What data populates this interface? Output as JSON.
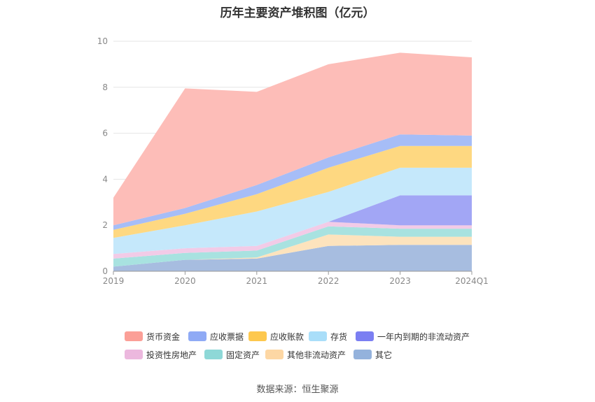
{
  "chart_data": {
    "type": "area",
    "stacked": true,
    "title": "历年主要资产堆积图（亿元）",
    "categories": [
      "2019",
      "2020",
      "2021",
      "2022",
      "2023",
      "2024Q1"
    ],
    "ylim": [
      0,
      10
    ],
    "yticks": [
      0,
      2,
      4,
      6,
      8,
      10
    ],
    "grid": true,
    "legend_position": "bottom",
    "series": [
      {
        "name": "其它",
        "values": [
          0.2,
          0.5,
          0.55,
          1.1,
          1.15,
          1.15
        ],
        "color": "#a7bde0",
        "legend_color": "#94b2dc"
      },
      {
        "name": "其他非流动资产",
        "values": [
          0.0,
          0.0,
          0.05,
          0.5,
          0.35,
          0.35
        ],
        "color": "#fde3bd",
        "legend_color": "#fdd7a4"
      },
      {
        "name": "固定资产",
        "values": [
          0.35,
          0.3,
          0.3,
          0.35,
          0.35,
          0.35
        ],
        "color": "#a8e2e0",
        "legend_color": "#8ed8d7"
      },
      {
        "name": "投资性房地产",
        "values": [
          0.2,
          0.2,
          0.2,
          0.2,
          0.15,
          0.15
        ],
        "color": "#f2cbe7",
        "legend_color": "#ecb8de"
      },
      {
        "name": "一年内到期的非流动资产",
        "values": [
          0.0,
          0.0,
          0.0,
          0.0,
          1.3,
          1.3
        ],
        "color": "#a2a6f5",
        "legend_color": "#7b7ff2"
      },
      {
        "name": "存货",
        "values": [
          0.7,
          1.0,
          1.5,
          1.3,
          1.2,
          1.2
        ],
        "color": "#c5e8fb",
        "legend_color": "#a9def9"
      },
      {
        "name": "应收账款",
        "values": [
          0.35,
          0.5,
          0.75,
          1.05,
          0.95,
          0.95
        ],
        "color": "#fed881",
        "legend_color": "#fdc84e"
      },
      {
        "name": "应收票据",
        "values": [
          0.2,
          0.25,
          0.4,
          0.45,
          0.5,
          0.45
        ],
        "color": "#a6bdf7",
        "legend_color": "#8faaf5"
      },
      {
        "name": "货币资金",
        "values": [
          1.2,
          5.2,
          4.05,
          4.05,
          3.55,
          3.4
        ],
        "color": "#fdbdb8",
        "legend_color": "#fb9f97"
      }
    ]
  },
  "legend": [
    {
      "label": "货币资金",
      "color": "#fb9f97"
    },
    {
      "label": "应收票据",
      "color": "#8faaf5"
    },
    {
      "label": "应收账款",
      "color": "#fdc84e"
    },
    {
      "label": "存货",
      "color": "#a9def9"
    },
    {
      "label": "一年内到期的非流动资产",
      "color": "#7b7ff2"
    },
    {
      "label": "投资性房地产",
      "color": "#ecb8de"
    },
    {
      "label": "固定资产",
      "color": "#8ed8d7"
    },
    {
      "label": "其他非流动资产",
      "color": "#fdd7a4"
    },
    {
      "label": "其它",
      "color": "#94b2dc"
    }
  ],
  "source": "数据来源：恒生聚源"
}
